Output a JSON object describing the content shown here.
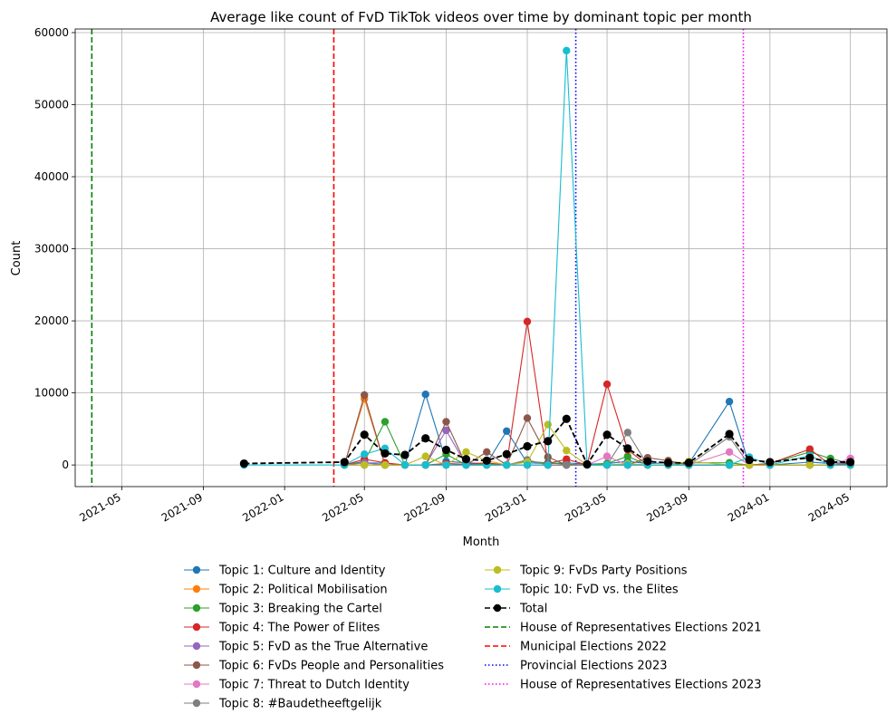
{
  "chart_data": {
    "type": "line",
    "title": "Average like count of FvD TikTok videos over time by dominant topic per month",
    "xlabel": "Month",
    "ylabel": "Count",
    "xlim": [
      "2021-02-20",
      "2024-06-25"
    ],
    "ylim": [
      -3000,
      60500
    ],
    "grid": true,
    "legend_placement": "below",
    "x_ticks": [
      "2021-05-01",
      "2021-09-01",
      "2022-01-01",
      "2022-05-01",
      "2022-09-01",
      "2023-01-01",
      "2023-05-01",
      "2023-09-01",
      "2024-01-01",
      "2024-05-01"
    ],
    "x_tick_labels": [
      "2021-05",
      "2021-09",
      "2022-01",
      "2022-05",
      "2022-09",
      "2023-01",
      "2023-05",
      "2023-09",
      "2024-01",
      "2024-05"
    ],
    "y_ticks": [
      0,
      10000,
      20000,
      30000,
      40000,
      50000,
      60000
    ],
    "y_tick_labels": [
      "0",
      "10000",
      "20000",
      "30000",
      "40000",
      "50000",
      "60000"
    ],
    "months": [
      "2021-11-01",
      "2022-04-01",
      "2022-05-01",
      "2022-06-01",
      "2022-07-01",
      "2022-08-01",
      "2022-09-01",
      "2022-10-01",
      "2022-11-01",
      "2022-12-01",
      "2023-01-01",
      "2023-02-01",
      "2023-03-01",
      "2023-04-01",
      "2023-05-01",
      "2023-06-01",
      "2023-07-01",
      "2023-08-01",
      "2023-09-01",
      "2023-11-01",
      "2023-12-01",
      "2024-01-01",
      "2024-03-01",
      "2024-04-01",
      "2024-05-01"
    ],
    "series": [
      {
        "name": "Topic 1: Culture and Identity",
        "color": "#1f77b4",
        "line_style": "solid",
        "values": [
          null,
          200,
          300,
          250,
          0,
          9800,
          500,
          300,
          200,
          4700,
          300,
          200,
          300,
          100,
          200,
          500,
          200,
          300,
          200,
          8800,
          0,
          0,
          400,
          200,
          300
        ]
      },
      {
        "name": "Topic 2: Political Mobilisation",
        "color": "#ff7f0e",
        "line_style": "solid",
        "values": [
          null,
          0,
          9200,
          0,
          0,
          0,
          0,
          0,
          0,
          0,
          0,
          0,
          0,
          0,
          0,
          0,
          0,
          0,
          0,
          0,
          0,
          0,
          0,
          0,
          0
        ]
      },
      {
        "name": "Topic 3: Breaking the Cartel",
        "color": "#2ca02c",
        "line_style": "solid",
        "values": [
          null,
          0,
          500,
          6000,
          0,
          0,
          1500,
          0,
          200,
          0,
          500,
          300,
          100,
          0,
          200,
          1200,
          0,
          0,
          300,
          300,
          0,
          200,
          1800,
          900,
          200
        ]
      },
      {
        "name": "Topic 4: The Power of Elites",
        "color": "#d62728",
        "line_style": "solid",
        "values": [
          null,
          0,
          800,
          300,
          0,
          0,
          200,
          100,
          300,
          0,
          19900,
          200,
          800,
          0,
          11200,
          2100,
          0,
          0,
          0,
          0,
          0,
          200,
          2200,
          0,
          200
        ]
      },
      {
        "name": "Topic 5: FvD as the True Alternative",
        "color": "#9467bd",
        "line_style": "solid",
        "values": [
          null,
          0,
          300,
          0,
          0,
          0,
          4800,
          0,
          0,
          0,
          0,
          0,
          0,
          0,
          0,
          0,
          0,
          0,
          0,
          0,
          0,
          0,
          0,
          0,
          0
        ]
      },
      {
        "name": "Topic 6: FvDs People and Personalities",
        "color": "#8c564b",
        "line_style": "solid",
        "values": [
          null,
          0,
          9700,
          0,
          0,
          0,
          6000,
          0,
          1800,
          0,
          6500,
          1100,
          0,
          0,
          0,
          0,
          1000,
          600,
          0,
          0,
          0,
          0,
          0,
          0,
          0
        ]
      },
      {
        "name": "Topic 7: Threat to Dutch Identity",
        "color": "#e377c2",
        "line_style": "solid",
        "values": [
          null,
          0,
          0,
          0,
          0,
          0,
          0,
          0,
          0,
          0,
          0,
          0,
          0,
          0,
          1200,
          0,
          0,
          0,
          0,
          1800,
          0,
          0,
          0,
          0,
          900
        ]
      },
      {
        "name": "Topic 8: #Baudetheeftgelijk",
        "color": "#7f7f7f",
        "line_style": "solid",
        "values": [
          null,
          0,
          0,
          0,
          0,
          0,
          0,
          0,
          0,
          0,
          700,
          0,
          0,
          0,
          0,
          4500,
          0,
          0,
          0,
          3900,
          0,
          0,
          0,
          0,
          0
        ]
      },
      {
        "name": "Topic 9: FvDs Party Positions",
        "color": "#bcbd22",
        "line_style": "solid",
        "values": [
          null,
          0,
          0,
          0,
          0,
          1200,
          0,
          1800,
          600,
          0,
          400,
          5600,
          2000,
          0,
          0,
          200,
          0,
          0,
          500,
          0,
          0,
          0,
          0,
          0,
          0
        ]
      },
      {
        "name": "Topic 10: FvD vs. the Elites",
        "color": "#17becf",
        "line_style": "solid",
        "values": [
          0,
          0,
          1500,
          2300,
          0,
          0,
          0,
          0,
          0,
          0,
          0,
          0,
          57500,
          0,
          0,
          0,
          0,
          0,
          0,
          0,
          1100,
          0,
          1300,
          0,
          0
        ]
      },
      {
        "name": "Total",
        "color": "#000000",
        "line_style": "dashed",
        "values": [
          200,
          400,
          4200,
          1600,
          1400,
          3700,
          2100,
          800,
          600,
          1500,
          2600,
          3300,
          6400,
          100,
          4200,
          2300,
          500,
          300,
          300,
          4300,
          700,
          400,
          1000,
          400,
          400
        ]
      }
    ],
    "vlines": [
      {
        "name": "House of Representatives Elections 2021",
        "date": "2021-03-17",
        "color": "#008000",
        "line_style": "dashed"
      },
      {
        "name": "Municipal Elections 2022",
        "date": "2022-03-16",
        "color": "#ff0000",
        "line_style": "dashed"
      },
      {
        "name": "Provincial Elections 2023",
        "date": "2023-03-15",
        "color": "#0000ff",
        "line_style": "dotted"
      },
      {
        "name": "House of Representatives Elections 2023",
        "date": "2023-11-22",
        "color": "#ff00ff",
        "line_style": "dotted"
      }
    ]
  }
}
